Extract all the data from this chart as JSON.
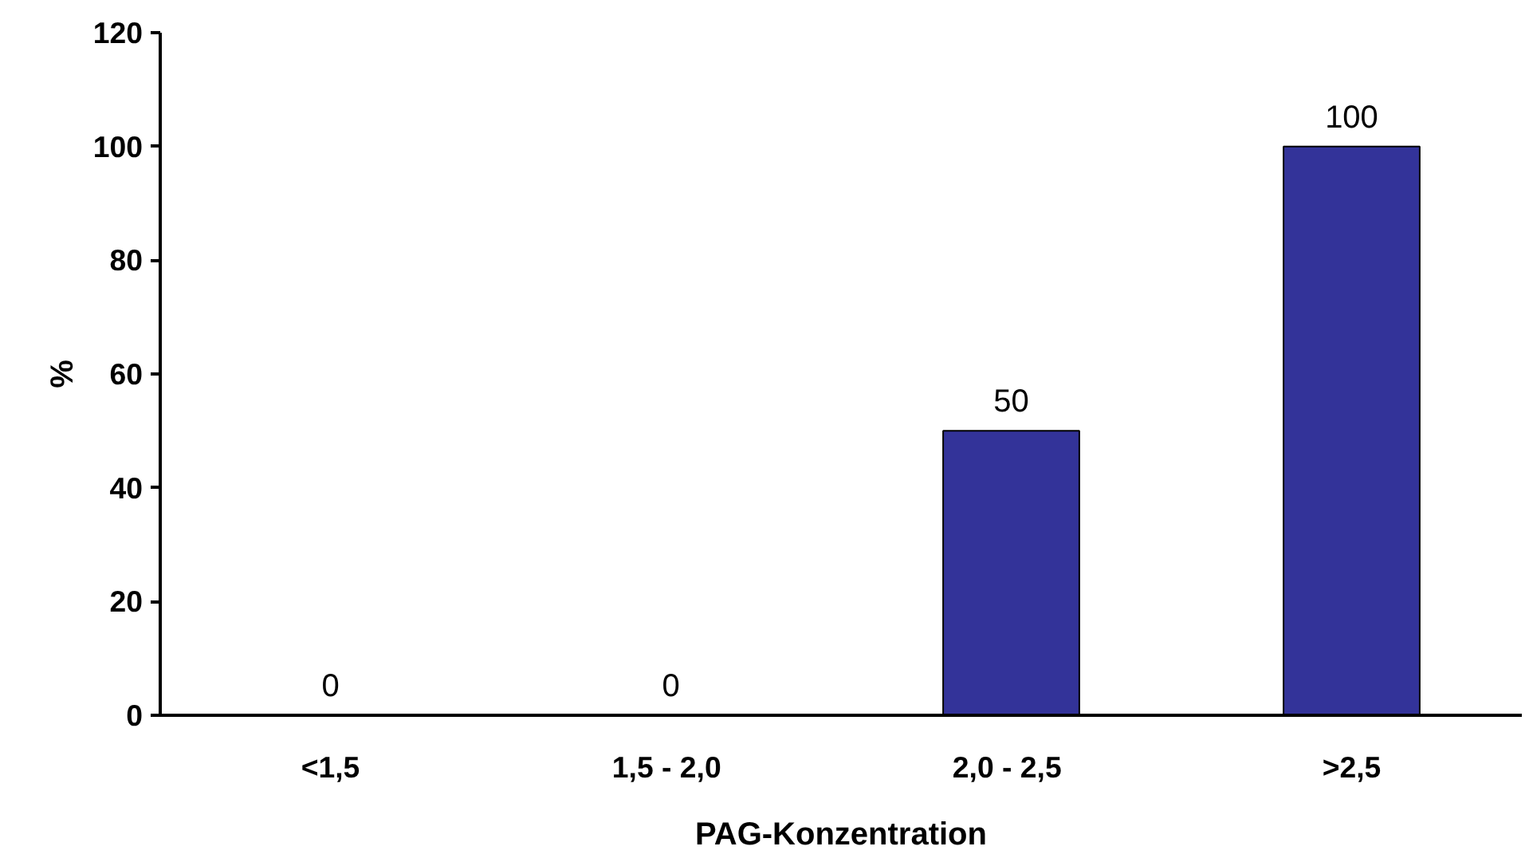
{
  "chart_data": {
    "type": "bar",
    "xlabel": "PAG-Konzentration",
    "ylabel": "%",
    "categories": [
      "<1,5",
      "1,5  - 2,0",
      "2,0  - 2,5",
      ">2,5"
    ],
    "values": [
      0,
      0,
      50,
      100
    ],
    "color": "#333399",
    "ylim": [
      0,
      120
    ],
    "yticks": [
      0,
      20,
      40,
      60,
      80,
      100,
      120
    ],
    "grid": false,
    "data_labels": true
  }
}
